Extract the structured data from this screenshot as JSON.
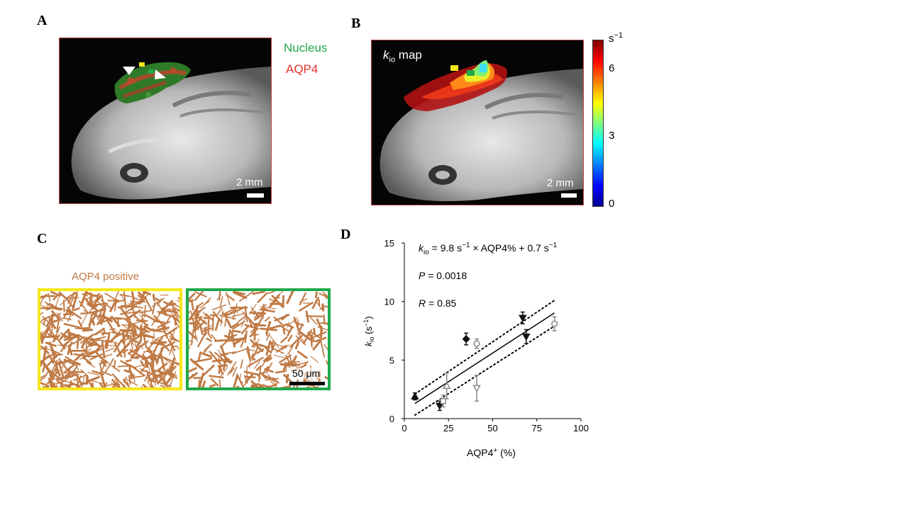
{
  "panels": {
    "a": "A",
    "b": "B",
    "c": "C",
    "d": "D"
  },
  "panel_a": {
    "legend_nucleus": "Nucleus",
    "legend_aqp4": "AQP4",
    "scale": "2 mm",
    "colors": {
      "nucleus": "#22a84a",
      "aqp4": "#e0302a"
    }
  },
  "panel_b": {
    "map_k": "k",
    "map_sub": "io",
    "map_rest": " map",
    "scale": "2 mm",
    "colorbar_unit": "s",
    "colorbar_unit_exp": "−1",
    "colorbar_ticks": [
      "6",
      "3",
      "0"
    ]
  },
  "panel_c": {
    "label": "AQP4 positive",
    "scale": "50 μm",
    "box_colors": [
      "#f5e71a",
      "#20a84a"
    ],
    "stain_color": "#c07a45"
  },
  "chart_data": {
    "type": "scatter",
    "xlabel": "AQP4⁺ (%)",
    "ylabel": "kio (s⁻¹)",
    "xlim": [
      0,
      100
    ],
    "ylim": [
      0,
      15
    ],
    "xticks": [
      0,
      25,
      50,
      75,
      100
    ],
    "yticks": [
      0,
      5,
      10,
      15
    ],
    "annotations": {
      "equation": "kio = 9.8 s⁻¹ × AQP4% + 0.7 s⁻¹",
      "p_value": "P = 0.0018",
      "r_value": "R = 0.85"
    },
    "points": [
      {
        "x": 6,
        "y": 1.9,
        "err": 0.3,
        "marker": "triangle-up",
        "fill": "black"
      },
      {
        "x": 20,
        "y": 1.1,
        "err": 0.4,
        "marker": "triangle-down",
        "fill": "black"
      },
      {
        "x": 22,
        "y": 1.5,
        "err": 0.5,
        "marker": "square",
        "fill": "none"
      },
      {
        "x": 24,
        "y": 2.8,
        "err": 1.1,
        "marker": "triangle-up",
        "fill": "none"
      },
      {
        "x": 35,
        "y": 6.8,
        "err": 0.5,
        "marker": "diamond",
        "fill": "black"
      },
      {
        "x": 41,
        "y": 6.4,
        "err": 0.4,
        "marker": "circle",
        "fill": "none"
      },
      {
        "x": 41,
        "y": 2.6,
        "err": 1.1,
        "marker": "triangle-down",
        "fill": "none"
      },
      {
        "x": 67,
        "y": 8.6,
        "err": 0.5,
        "marker": "triangle-down",
        "fill": "black"
      },
      {
        "x": 69,
        "y": 7.0,
        "err": 0.6,
        "marker": "triangle-down",
        "fill": "black"
      },
      {
        "x": 85,
        "y": 8.1,
        "err": 0.6,
        "marker": "circle",
        "fill": "none"
      }
    ],
    "fit": {
      "x": [
        6,
        85
      ],
      "y": [
        1.29,
        9.03
      ]
    },
    "ci_upper": {
      "x": [
        6,
        85
      ],
      "y": [
        2.1,
        10.1
      ]
    },
    "ci_lower": {
      "x": [
        6,
        85
      ],
      "y": [
        0.3,
        7.9
      ]
    }
  }
}
